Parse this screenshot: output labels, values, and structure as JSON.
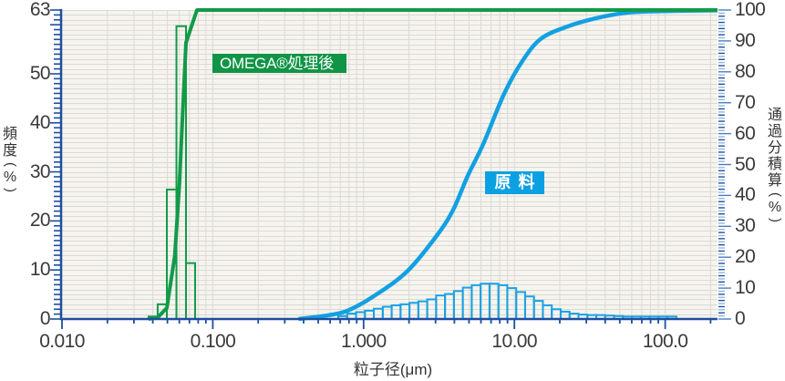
{
  "chart_data": {
    "type": "bar",
    "title": "",
    "xlabel": "粒子径(μm)",
    "ylabel": "頻度(%)",
    "y2label": "通過分積算(%)",
    "xscale": "log",
    "xlim": [
      0.01,
      222
    ],
    "ylim": [
      0,
      63
    ],
    "y2lim": [
      0,
      100
    ],
    "grid": true,
    "x_ticks": [
      0.01,
      0.1,
      1,
      10,
      100
    ],
    "x_tick_labels": [
      "0.010",
      "0.100",
      "1.000",
      "10.00",
      "100.0"
    ],
    "y_ticks": [
      63,
      50,
      40,
      30,
      20,
      10,
      0
    ],
    "y_tick_labels": [
      "63",
      "50",
      "40",
      "30",
      "20",
      "10",
      "0"
    ],
    "y2_ticks": [
      100,
      90,
      80,
      70,
      60,
      50,
      40,
      30,
      20,
      10,
      0
    ],
    "y2_tick_labels": [
      "100",
      "90",
      "80",
      "70",
      "60",
      "50",
      "40",
      "30",
      "20",
      "10",
      "0"
    ],
    "legend_position": "inline-labels",
    "legend": [
      {
        "label": "OMEGA®処理後",
        "color": "#109446"
      },
      {
        "label": "原料",
        "color": "#0ba0e2"
      }
    ],
    "series": [
      {
        "name": "原料 頻度",
        "type": "bar",
        "axis": "y",
        "color": "#1aa2e4",
        "bin_edges_um": [
          0.679,
          0.778,
          0.891,
          1.021,
          1.169,
          1.34,
          1.535,
          1.758,
          2.014,
          2.307,
          2.642,
          3.027,
          3.467,
          3.972,
          4.55,
          5.212,
          5.97,
          6.839,
          7.834,
          8.974,
          10.28,
          11.78,
          13.49,
          15.45,
          17.7,
          20.28,
          23.23,
          26.61,
          30.48,
          34.91,
          39.99,
          45.81,
          52.48,
          60.12,
          68.87,
          78.89,
          90.36,
          103.5,
          118.6
        ],
        "values": [
          0.6,
          1.1,
          1.4,
          1.7,
          2.1,
          2.5,
          2.8,
          3.0,
          3.3,
          3.6,
          4.0,
          4.8,
          5.1,
          5.7,
          6.4,
          6.9,
          7.2,
          7.2,
          6.9,
          6.3,
          5.5,
          4.6,
          3.7,
          2.8,
          2.0,
          1.5,
          1.1,
          0.9,
          0.8,
          0.8,
          0.7,
          0.6,
          0.5,
          0.5,
          0.5,
          0.5,
          0.5,
          0.5
        ]
      },
      {
        "name": "原料 通過分積算",
        "type": "line",
        "axis": "y2",
        "color": "#12a0e2",
        "smooth": true,
        "x_um": [
          0.37,
          0.58,
          0.8,
          1.22,
          1.96,
          3.1,
          3.93,
          4.9,
          6.21,
          8.55,
          11.3,
          14.9,
          21.7,
          34.4,
          55.2,
          87.5,
          222
        ],
        "values": [
          0,
          1.2,
          2.9,
          8.0,
          15.6,
          27.4,
          35.4,
          46.3,
          56.6,
          72.9,
          83.5,
          90.6,
          94.4,
          97.3,
          99.1,
          99.6,
          99.9
        ]
      },
      {
        "name": "OMEGA®処理後 頻度",
        "type": "bar",
        "axis": "y",
        "color": "#129a48",
        "bin_edges_um": [
          0.0375,
          0.0431,
          0.0496,
          0.0574,
          0.0664,
          0.0763
        ],
        "values": [
          0.5,
          3.0,
          26.4,
          59.7,
          11.4
        ]
      },
      {
        "name": "OMEGA®処理後 通過分積算",
        "type": "line",
        "axis": "y2",
        "color": "#129a48",
        "smooth": false,
        "x_um": [
          0.0375,
          0.0431,
          0.0496,
          0.056,
          0.0601,
          0.0664,
          0.0785,
          222
        ],
        "values": [
          0,
          0.5,
          3.6,
          20.6,
          44.0,
          89.4,
          100,
          100
        ]
      }
    ]
  }
}
